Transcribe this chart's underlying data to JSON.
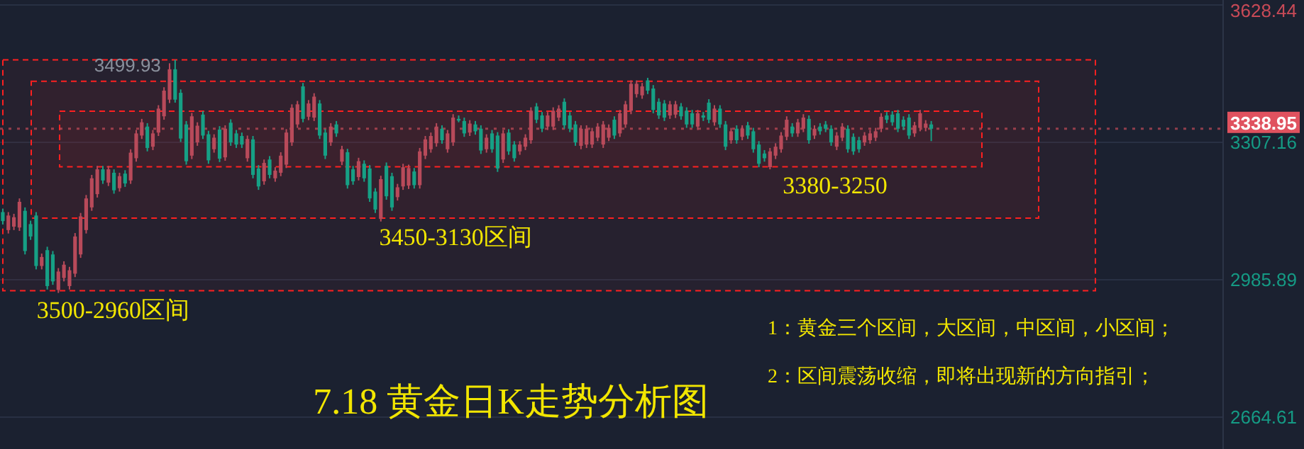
{
  "chart_data": {
    "type": "candlestick",
    "title": "7.18 黄金日K走势分析图",
    "categories": [
      null,
      null,
      null,
      null,
      null,
      null,
      null,
      null,
      null,
      null,
      null,
      null,
      null,
      null,
      null,
      null,
      null,
      null,
      null,
      null,
      null,
      null,
      null,
      null,
      null,
      null,
      null,
      null,
      null,
      null,
      null,
      null,
      null,
      null,
      null,
      null,
      null,
      null,
      null,
      null,
      null,
      null,
      null,
      null,
      null,
      null,
      null,
      null,
      null,
      null,
      null,
      null,
      null,
      null,
      null,
      null,
      null,
      null,
      null,
      null,
      null,
      null,
      null,
      null,
      null,
      null,
      null,
      null,
      null,
      null,
      null,
      null,
      null,
      null,
      null,
      null,
      null,
      null,
      null,
      null,
      null,
      null,
      null,
      null,
      null,
      null,
      null,
      null,
      null,
      null,
      null,
      null,
      null,
      null,
      null,
      null,
      null,
      null,
      null,
      null,
      null,
      null,
      null,
      null,
      null,
      null,
      null,
      null,
      null,
      null,
      null,
      null,
      null,
      null,
      null,
      null,
      null,
      null,
      null,
      null,
      null,
      null,
      null,
      null,
      null,
      null,
      null,
      null,
      null,
      null,
      null,
      null,
      null,
      null,
      null,
      null,
      null,
      null,
      null,
      null,
      null,
      null,
      null,
      null,
      null,
      null,
      null,
      null,
      null,
      null,
      null,
      null,
      null,
      null,
      null,
      null,
      null,
      null,
      null,
      null,
      null,
      null,
      null,
      null,
      null,
      null,
      null,
      null,
      null,
      null,
      null,
      null,
      null,
      null,
      null,
      null,
      null,
      null,
      null,
      null,
      null,
      null,
      null,
      null,
      null,
      null,
      null,
      null,
      null,
      null,
      null,
      null,
      null,
      null,
      null,
      null,
      null,
      null,
      null,
      null,
      null,
      null,
      null,
      null,
      null,
      null,
      null,
      null,
      null,
      null,
      null,
      null,
      null,
      null,
      null,
      null,
      null,
      null,
      null,
      null
    ],
    "ohlc": [
      [
        3144,
        3152,
        3115,
        3123
      ],
      [
        3102,
        3144,
        3094,
        3136
      ],
      [
        3110,
        3140,
        3102,
        3132
      ],
      [
        3108,
        3176,
        3100,
        3168
      ],
      [
        3147,
        3155,
        3045,
        3053
      ],
      [
        3116,
        3124,
        3079,
        3087
      ],
      [
        3136,
        3144,
        3010,
        3018
      ],
      [
        3018,
        3047,
        3010,
        3039
      ],
      [
        3055,
        3063,
        2963,
        2971
      ],
      [
        3045,
        3053,
        2974,
        2982
      ],
      [
        2962,
        3013,
        2955,
        3005
      ],
      [
        2990,
        3029,
        2982,
        3021
      ],
      [
        2971,
        3016,
        2963,
        3008
      ],
      [
        3000,
        3095,
        2992,
        3087
      ],
      [
        3045,
        3142,
        3037,
        3134
      ],
      [
        3102,
        3184,
        3094,
        3176
      ],
      [
        3155,
        3231,
        3147,
        3223
      ],
      [
        3186,
        3252,
        3178,
        3244
      ],
      [
        3244,
        3252,
        3210,
        3218
      ],
      [
        3213,
        3252,
        3205,
        3244
      ],
      [
        3236,
        3244,
        3187,
        3195
      ],
      [
        3200,
        3236,
        3192,
        3228
      ],
      [
        3234,
        3242,
        3203,
        3211
      ],
      [
        3218,
        3291,
        3210,
        3283
      ],
      [
        3270,
        3336,
        3262,
        3328
      ],
      [
        3323,
        3362,
        3315,
        3354
      ],
      [
        3344,
        3352,
        3286,
        3294
      ],
      [
        3297,
        3336,
        3289,
        3328
      ],
      [
        3330,
        3394,
        3322,
        3386
      ],
      [
        3368,
        3436,
        3360,
        3428
      ],
      [
        3407,
        3492,
        3399,
        3478
      ],
      [
        3478,
        3499.93,
        3400,
        3407
      ],
      [
        3423,
        3431,
        3308,
        3316
      ],
      [
        3349,
        3357,
        3255,
        3263
      ],
      [
        3276,
        3376,
        3268,
        3368
      ],
      [
        3307,
        3354,
        3299,
        3346
      ],
      [
        3372,
        3380,
        3315,
        3323
      ],
      [
        3326,
        3334,
        3257,
        3265
      ],
      [
        3291,
        3326,
        3283,
        3318
      ],
      [
        3337,
        3345,
        3261,
        3269
      ],
      [
        3272,
        3347,
        3264,
        3339
      ],
      [
        3353,
        3361,
        3299,
        3307
      ],
      [
        3328,
        3336,
        3294,
        3302
      ],
      [
        3322,
        3330,
        3294,
        3302
      ],
      [
        3270,
        3323,
        3262,
        3315
      ],
      [
        3314,
        3322,
        3223,
        3231
      ],
      [
        3246,
        3254,
        3196,
        3204
      ],
      [
        3216,
        3267,
        3208,
        3259
      ],
      [
        3267,
        3275,
        3223,
        3231
      ],
      [
        3223,
        3249,
        3215,
        3241
      ],
      [
        3236,
        3284,
        3228,
        3276
      ],
      [
        3255,
        3338,
        3247,
        3330
      ],
      [
        3307,
        3396,
        3299,
        3388
      ],
      [
        3349,
        3404,
        3341,
        3396
      ],
      [
        3438,
        3446,
        3354,
        3362
      ],
      [
        3367,
        3406,
        3359,
        3398
      ],
      [
        3365,
        3422,
        3357,
        3414
      ],
      [
        3398,
        3406,
        3315,
        3323
      ],
      [
        3330,
        3338,
        3268,
        3276
      ],
      [
        3307,
        3352,
        3299,
        3344
      ],
      [
        3349,
        3357,
        3320,
        3328
      ],
      [
        3262,
        3299,
        3254,
        3291
      ],
      [
        3284,
        3292,
        3199,
        3207
      ],
      [
        3244,
        3252,
        3208,
        3216
      ],
      [
        3226,
        3271,
        3218,
        3263
      ],
      [
        3257,
        3265,
        3215,
        3223
      ],
      [
        3246,
        3254,
        3168,
        3176
      ],
      [
        3192,
        3200,
        3142,
        3150
      ],
      [
        3128,
        3229,
        3122,
        3221
      ],
      [
        3252,
        3260,
        3173,
        3181
      ],
      [
        3228,
        3236,
        3147,
        3155
      ],
      [
        3179,
        3210,
        3171,
        3202
      ],
      [
        3204,
        3257,
        3196,
        3249
      ],
      [
        3206,
        3255,
        3198,
        3247
      ],
      [
        3239,
        3247,
        3199,
        3207
      ],
      [
        3207,
        3294,
        3199,
        3286
      ],
      [
        3276,
        3322,
        3268,
        3314
      ],
      [
        3291,
        3330,
        3283,
        3322
      ],
      [
        3305,
        3352,
        3297,
        3344
      ],
      [
        3339,
        3347,
        3304,
        3312
      ],
      [
        3291,
        3336,
        3283,
        3328
      ],
      [
        3307,
        3373,
        3299,
        3365
      ],
      [
        3362,
        3370,
        3354,
        3358
      ],
      [
        3357,
        3365,
        3320,
        3328
      ],
      [
        3330,
        3359,
        3322,
        3351
      ],
      [
        3349,
        3357,
        3325,
        3333
      ],
      [
        3339,
        3347,
        3280,
        3288
      ],
      [
        3291,
        3326,
        3283,
        3318
      ],
      [
        3328,
        3336,
        3283,
        3291
      ],
      [
        3323,
        3331,
        3238,
        3246
      ],
      [
        3267,
        3336,
        3259,
        3328
      ],
      [
        3330,
        3338,
        3278,
        3286
      ],
      [
        3302,
        3310,
        3262,
        3270
      ],
      [
        3286,
        3310,
        3278,
        3302
      ],
      [
        3297,
        3326,
        3289,
        3318
      ],
      [
        3312,
        3389,
        3304,
        3381
      ],
      [
        3391,
        3399,
        3352,
        3360
      ],
      [
        3370,
        3378,
        3331,
        3339
      ],
      [
        3344,
        3378,
        3336,
        3370
      ],
      [
        3344,
        3389,
        3336,
        3381
      ],
      [
        3365,
        3394,
        3357,
        3386
      ],
      [
        3402,
        3410,
        3339,
        3347
      ],
      [
        3370,
        3378,
        3331,
        3339
      ],
      [
        3349,
        3357,
        3299,
        3307
      ],
      [
        3299,
        3347,
        3291,
        3339
      ],
      [
        3302,
        3347,
        3294,
        3339
      ],
      [
        3302,
        3341,
        3294,
        3333
      ],
      [
        3318,
        3352,
        3310,
        3344
      ],
      [
        3302,
        3357,
        3294,
        3349
      ],
      [
        3318,
        3349,
        3310,
        3341
      ],
      [
        3360,
        3368,
        3315,
        3323
      ],
      [
        3328,
        3383,
        3320,
        3375
      ],
      [
        3349,
        3404,
        3341,
        3396
      ],
      [
        3381,
        3452,
        3373,
        3444
      ],
      [
        3420,
        3452,
        3412,
        3444
      ],
      [
        3417,
        3446,
        3409,
        3438
      ],
      [
        3452,
        3458,
        3420,
        3428
      ],
      [
        3433,
        3441,
        3375,
        3383
      ],
      [
        3402,
        3410,
        3362,
        3370
      ],
      [
        3398,
        3406,
        3357,
        3365
      ],
      [
        3370,
        3404,
        3362,
        3396
      ],
      [
        3372,
        3404,
        3364,
        3396
      ],
      [
        3391,
        3399,
        3360,
        3368
      ],
      [
        3381,
        3389,
        3341,
        3349
      ],
      [
        3375,
        3383,
        3341,
        3349
      ],
      [
        3344,
        3383,
        3336,
        3375
      ],
      [
        3370,
        3378,
        3357,
        3365
      ],
      [
        3400,
        3408,
        3352,
        3360
      ],
      [
        3354,
        3394,
        3346,
        3386
      ],
      [
        3386,
        3394,
        3341,
        3349
      ],
      [
        3349,
        3357,
        3289,
        3297
      ],
      [
        3312,
        3341,
        3304,
        3333
      ],
      [
        3339,
        3347,
        3304,
        3312
      ],
      [
        3320,
        3347,
        3312,
        3339
      ],
      [
        3347,
        3355,
        3315,
        3323
      ],
      [
        3333,
        3341,
        3283,
        3291
      ],
      [
        3302,
        3310,
        3249,
        3257
      ],
      [
        3281,
        3289,
        3262,
        3270
      ],
      [
        3249,
        3294,
        3244,
        3286
      ],
      [
        3276,
        3305,
        3268,
        3297
      ],
      [
        3291,
        3331,
        3283,
        3323
      ],
      [
        3320,
        3368,
        3312,
        3360
      ],
      [
        3344,
        3352,
        3320,
        3328
      ],
      [
        3328,
        3362,
        3320,
        3354
      ],
      [
        3339,
        3373,
        3331,
        3365
      ],
      [
        3362,
        3370,
        3304,
        3312
      ],
      [
        3323,
        3347,
        3315,
        3339
      ],
      [
        3344,
        3352,
        3325,
        3333
      ],
      [
        3349,
        3357,
        3331,
        3339
      ],
      [
        3339,
        3347,
        3299,
        3307
      ],
      [
        3297,
        3331,
        3289,
        3323
      ],
      [
        3318,
        3352,
        3310,
        3344
      ],
      [
        3339,
        3347,
        3283,
        3291
      ],
      [
        3320,
        3328,
        3278,
        3286
      ],
      [
        3312,
        3320,
        3283,
        3291
      ],
      [
        3307,
        3331,
        3299,
        3323
      ],
      [
        3312,
        3336,
        3304,
        3328
      ],
      [
        3318,
        3341,
        3310,
        3333
      ],
      [
        3339,
        3375,
        3331,
        3367
      ],
      [
        3370,
        3378,
        3352,
        3360
      ],
      [
        3372,
        3380,
        3346,
        3354
      ],
      [
        3375,
        3383,
        3331,
        3339
      ],
      [
        3360,
        3368,
        3336,
        3344
      ],
      [
        3365,
        3373,
        3315,
        3323
      ],
      [
        3328,
        3355,
        3320,
        3347
      ],
      [
        3341,
        3383,
        3333,
        3375
      ],
      [
        3341,
        3359,
        3333,
        3351
      ],
      [
        3349,
        3357,
        3310,
        3338.95
      ],
      null,
      null,
      null,
      null,
      null,
      null,
      null,
      null,
      null,
      null,
      null,
      null,
      null,
      null,
      null,
      null,
      null,
      null,
      null,
      null,
      null,
      null,
      null,
      null,
      null,
      null,
      null,
      null,
      null,
      null,
      null,
      null,
      null,
      null,
      null,
      null,
      null,
      null,
      null,
      null,
      null,
      null,
      null,
      null,
      null,
      null,
      null,
      null,
      null,
      null,
      null,
      null
    ],
    "colors": [
      "#16a085",
      "#b84a5a",
      "#b84a5a",
      "#b84a5a",
      "#16a085",
      "#16a085",
      "#16a085",
      "#b84a5a",
      "#16a085",
      "#16a085",
      "#b84a5a",
      "#b84a5a",
      "#b84a5a",
      "#b84a5a",
      "#b84a5a",
      "#b84a5a",
      "#b84a5a",
      "#b84a5a",
      "#16a085",
      "#b84a5a",
      "#16a085",
      "#b84a5a",
      "#16a085",
      "#b84a5a",
      "#b84a5a",
      "#b84a5a",
      "#16a085",
      "#b84a5a",
      "#b84a5a",
      "#b84a5a",
      "#b84a5a",
      "#16a085",
      "#16a085",
      "#16a085",
      "#b84a5a",
      "#b84a5a",
      "#16a085",
      "#16a085",
      "#b84a5a",
      "#16a085",
      "#b84a5a",
      "#16a085",
      "#16a085",
      "#16a085",
      "#b84a5a",
      "#16a085",
      "#16a085",
      "#b84a5a",
      "#16a085",
      "#b84a5a",
      "#b84a5a",
      "#b84a5a",
      "#b84a5a",
      "#b84a5a",
      "#16a085",
      "#b84a5a",
      "#b84a5a",
      "#16a085",
      "#16a085",
      "#b84a5a",
      "#16a085",
      "#b84a5a",
      "#16a085",
      "#16a085",
      "#b84a5a",
      "#16a085",
      "#16a085",
      "#16a085",
      "#b84a5a",
      "#16a085",
      "#16a085",
      "#b84a5a",
      "#b84a5a",
      "#b84a5a",
      "#16a085",
      "#b84a5a",
      "#b84a5a",
      "#b84a5a",
      "#b84a5a",
      "#16a085",
      "#b84a5a",
      "#b84a5a",
      "#16a085",
      "#16a085",
      "#b84a5a",
      "#16a085",
      "#16a085",
      "#b84a5a",
      "#16a085",
      "#16a085",
      "#b84a5a",
      "#16a085",
      "#16a085",
      "#b84a5a",
      "#b84a5a",
      "#b84a5a",
      "#16a085",
      "#16a085",
      "#b84a5a",
      "#b84a5a",
      "#b84a5a",
      "#16a085",
      "#16a085",
      "#16a085",
      "#b84a5a",
      "#b84a5a",
      "#b84a5a",
      "#b84a5a",
      "#b84a5a",
      "#b84a5a",
      "#16a085",
      "#b84a5a",
      "#b84a5a",
      "#b84a5a",
      "#b84a5a",
      "#b84a5a",
      "#16a085",
      "#16a085",
      "#16a085",
      "#16a085",
      "#b84a5a",
      "#b84a5a",
      "#16a085",
      "#16a085",
      "#16a085",
      "#b84a5a",
      "#16a085",
      "#16a085",
      "#b84a5a",
      "#16a085",
      "#16a085",
      "#b84a5a",
      "#16a085",
      "#b84a5a",
      "#16a085",
      "#16a085",
      "#16a085",
      "#16a085",
      "#b84a5a",
      "#b84a5a",
      "#b84a5a",
      "#b84a5a",
      "#16a085",
      "#b84a5a",
      "#b84a5a",
      "#16a085",
      "#b84a5a",
      "#16a085",
      "#16a085",
      "#16a085",
      "#b84a5a",
      "#b84a5a",
      "#16a085",
      "#16a085",
      "#16a085",
      "#b84a5a",
      "#b84a5a",
      "#b84a5a",
      "#b84a5a",
      "#16a085",
      "#16a085",
      "#16a085",
      "#16a085",
      "#16a085",
      "#b84a5a",
      "#b84a5a",
      "#b84a5a",
      "#16a085",
      null,
      null,
      null,
      null,
      null,
      null,
      null,
      null,
      null,
      null,
      null,
      null,
      null,
      null,
      null,
      null,
      null,
      null,
      null,
      null,
      null,
      null,
      null,
      null,
      null,
      null,
      null,
      null,
      null,
      null,
      null,
      null,
      null,
      null,
      null,
      null,
      null,
      null,
      null,
      null,
      null,
      null,
      null,
      null,
      null,
      null,
      null,
      null,
      null,
      null,
      null,
      null
    ],
    "ylim": [
      2590,
      3640
    ],
    "yticks": [
      3628.44,
      3307.16,
      2985.89,
      2664.61
    ],
    "grid": "y",
    "ref_lines": [
      {
        "axis": "y",
        "value": 3338.95,
        "label": "3338.95",
        "color": "#e0525f",
        "line_style": "dotted"
      }
    ],
    "bands": [
      {
        "axis": "y",
        "from": 2960,
        "to": 3500,
        "label": "3500-2960区间",
        "color": "#ff2020"
      },
      {
        "axis": "y",
        "from": 3130,
        "to": 3450,
        "label": "3450-3130区间",
        "color": "#ff2020"
      },
      {
        "axis": "y",
        "from": 3250,
        "to": 3380,
        "label": "3380-3250",
        "color": "#ff2020"
      }
    ],
    "annotations": [
      "3499.93",
      "1：黄金三个区间，大区间，中区间，小区间；",
      "2：区间震荡收缩，即将出现新的方向指引；"
    ]
  }
}
